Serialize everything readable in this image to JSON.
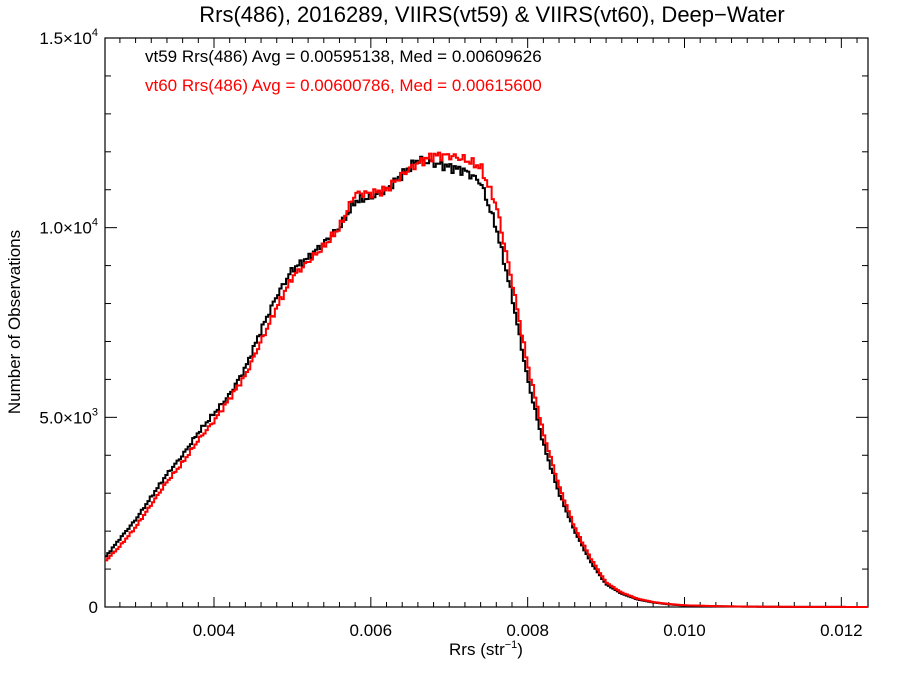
{
  "chart_data": {
    "type": "line",
    "title": "Rrs(486), 2016289, VIIRS(vt59) & VIIRS(vt60), Deep−Water",
    "xlabel": "Rrs (str",
    "xlabel_sup": "−1",
    "xlabel_close": ")",
    "ylabel": "Number of Observations",
    "xlim": [
      0.00261,
      0.01234
    ],
    "ylim": [
      0,
      15000
    ],
    "x_ticks": [
      {
        "value": 0.004,
        "label": "0.004"
      },
      {
        "value": 0.006,
        "label": "0.006"
      },
      {
        "value": 0.008,
        "label": "0.008"
      },
      {
        "value": 0.01,
        "label": "0.010"
      },
      {
        "value": 0.012,
        "label": "0.012"
      }
    ],
    "y_ticks": [
      {
        "value": 0,
        "label": "0",
        "sup": ""
      },
      {
        "value": 5000,
        "label": "5.0×10",
        "sup": "3"
      },
      {
        "value": 10000,
        "label": "1.0×10",
        "sup": "4"
      },
      {
        "value": 15000,
        "label": "1.5×10",
        "sup": "4"
      }
    ],
    "annotations": [
      "vt59 Rrs(486) Avg = 0.00595138, Med = 0.00609626",
      "vt60 Rrs(486) Avg = 0.00600786, Med = 0.00615600"
    ],
    "series": [
      {
        "color": "#000000",
        "x": [
          0.00261,
          0.0028,
          0.003,
          0.0032,
          0.0034,
          0.0036,
          0.0038,
          0.004,
          0.0042,
          0.0044,
          0.0046,
          0.0048,
          0.005,
          0.0052,
          0.0054,
          0.0056,
          0.0058,
          0.006,
          0.0062,
          0.0064,
          0.0066,
          0.0068,
          0.007,
          0.0072,
          0.0074,
          0.0076,
          0.0078,
          0.008,
          0.0082,
          0.0084,
          0.0086,
          0.0088,
          0.009,
          0.0092,
          0.0094,
          0.0096,
          0.0098,
          0.01,
          0.0104,
          0.0108,
          0.0112,
          0.0116,
          0.012,
          0.01234
        ],
        "y": [
          1300,
          1800,
          2300,
          2900,
          3500,
          4000,
          4600,
          5100,
          5600,
          6300,
          7300,
          8200,
          8900,
          9200,
          9600,
          10000,
          10700,
          10800,
          11000,
          11400,
          11800,
          11700,
          11600,
          11500,
          11200,
          10000,
          8200,
          6000,
          4300,
          3000,
          2000,
          1200,
          600,
          350,
          200,
          120,
          70,
          40,
          20,
          10,
          5,
          3,
          2,
          0
        ]
      },
      {
        "color": "#ff0000",
        "x": [
          0.00261,
          0.0028,
          0.003,
          0.0032,
          0.0034,
          0.0036,
          0.0038,
          0.004,
          0.0042,
          0.0044,
          0.0046,
          0.0048,
          0.005,
          0.0052,
          0.0054,
          0.0056,
          0.0058,
          0.006,
          0.0062,
          0.0064,
          0.0066,
          0.0068,
          0.007,
          0.0072,
          0.0074,
          0.0076,
          0.0078,
          0.008,
          0.0082,
          0.0084,
          0.0086,
          0.0088,
          0.009,
          0.0092,
          0.0094,
          0.0096,
          0.0098,
          0.01,
          0.0104,
          0.0108,
          0.0112,
          0.0116,
          0.012,
          0.01234
        ],
        "y": [
          1200,
          1600,
          2100,
          2700,
          3300,
          3800,
          4400,
          4900,
          5500,
          6100,
          7000,
          7900,
          8700,
          9100,
          9500,
          10000,
          10900,
          10900,
          11000,
          11400,
          11700,
          11900,
          11900,
          11800,
          11600,
          10600,
          8600,
          6400,
          4600,
          3200,
          2100,
          1300,
          650,
          380,
          220,
          130,
          80,
          45,
          22,
          11,
          6,
          3,
          2,
          0
        ]
      }
    ]
  }
}
